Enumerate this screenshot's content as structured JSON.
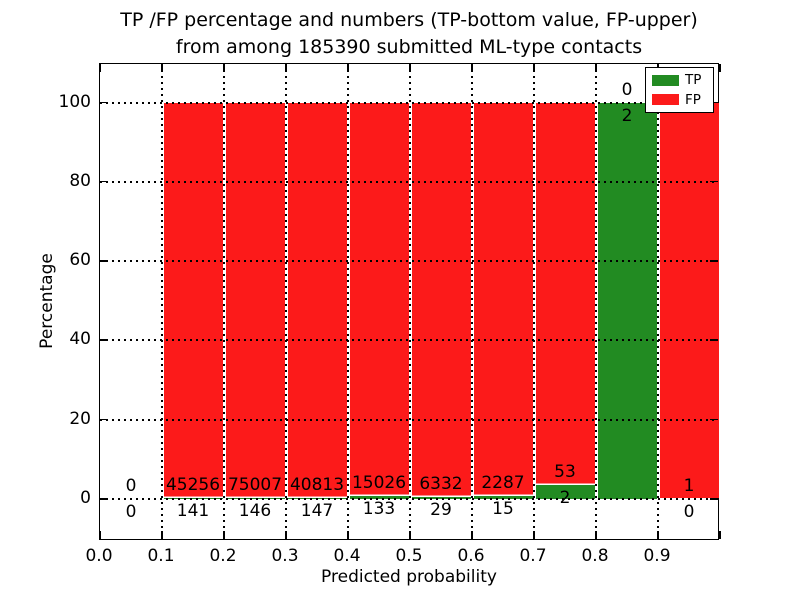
{
  "chart_data": {
    "type": "bar",
    "variant": "stacked-percentage-histogram",
    "title_line1": "TP /FP percentage and numbers (TP-bottom value, FP-upper)",
    "title_line2": "from among 185390 submitted ML-type contacts",
    "total_submitted": 185390,
    "xlabel": "Predicted probability",
    "ylabel": "Percentage",
    "x_tick_labels": [
      "0.0",
      "0.1",
      "0.2",
      "0.3",
      "0.4",
      "0.5",
      "0.6",
      "0.7",
      "0.8",
      "0.9"
    ],
    "y_ticks": [
      0,
      20,
      40,
      60,
      80,
      100
    ],
    "xlim": [
      0.0,
      1.0
    ],
    "ylim": [
      0,
      100
    ],
    "bin_width": 0.1,
    "grid": "dotted black, on",
    "legend": {
      "position": "upper-right",
      "entries": [
        {
          "label": "TP",
          "color": "#228b22"
        },
        {
          "label": "FP",
          "color": "#fc1a1a"
        }
      ]
    },
    "label_rule": "FP count above green-bar top, TP count below green-bar top",
    "bins": [
      {
        "x_start": 0.0,
        "x_end": 0.1,
        "tp": 0,
        "fp": 0
      },
      {
        "x_start": 0.1,
        "x_end": 0.2,
        "tp": 141,
        "fp": 45256
      },
      {
        "x_start": 0.2,
        "x_end": 0.3,
        "tp": 146,
        "fp": 75007
      },
      {
        "x_start": 0.3,
        "x_end": 0.4,
        "tp": 147,
        "fp": 40813
      },
      {
        "x_start": 0.4,
        "x_end": 0.5,
        "tp": 133,
        "fp": 15026
      },
      {
        "x_start": 0.5,
        "x_end": 0.6,
        "tp": 29,
        "fp": 6332
      },
      {
        "x_start": 0.6,
        "x_end": 0.7,
        "tp": 15,
        "fp": 2287
      },
      {
        "x_start": 0.7,
        "x_end": 0.8,
        "tp": 2,
        "fp": 53
      },
      {
        "x_start": 0.8,
        "x_end": 0.9,
        "tp": 2,
        "fp": 0
      },
      {
        "x_start": 0.9,
        "x_end": 1.0,
        "tp": 0,
        "fp": 1
      }
    ]
  }
}
